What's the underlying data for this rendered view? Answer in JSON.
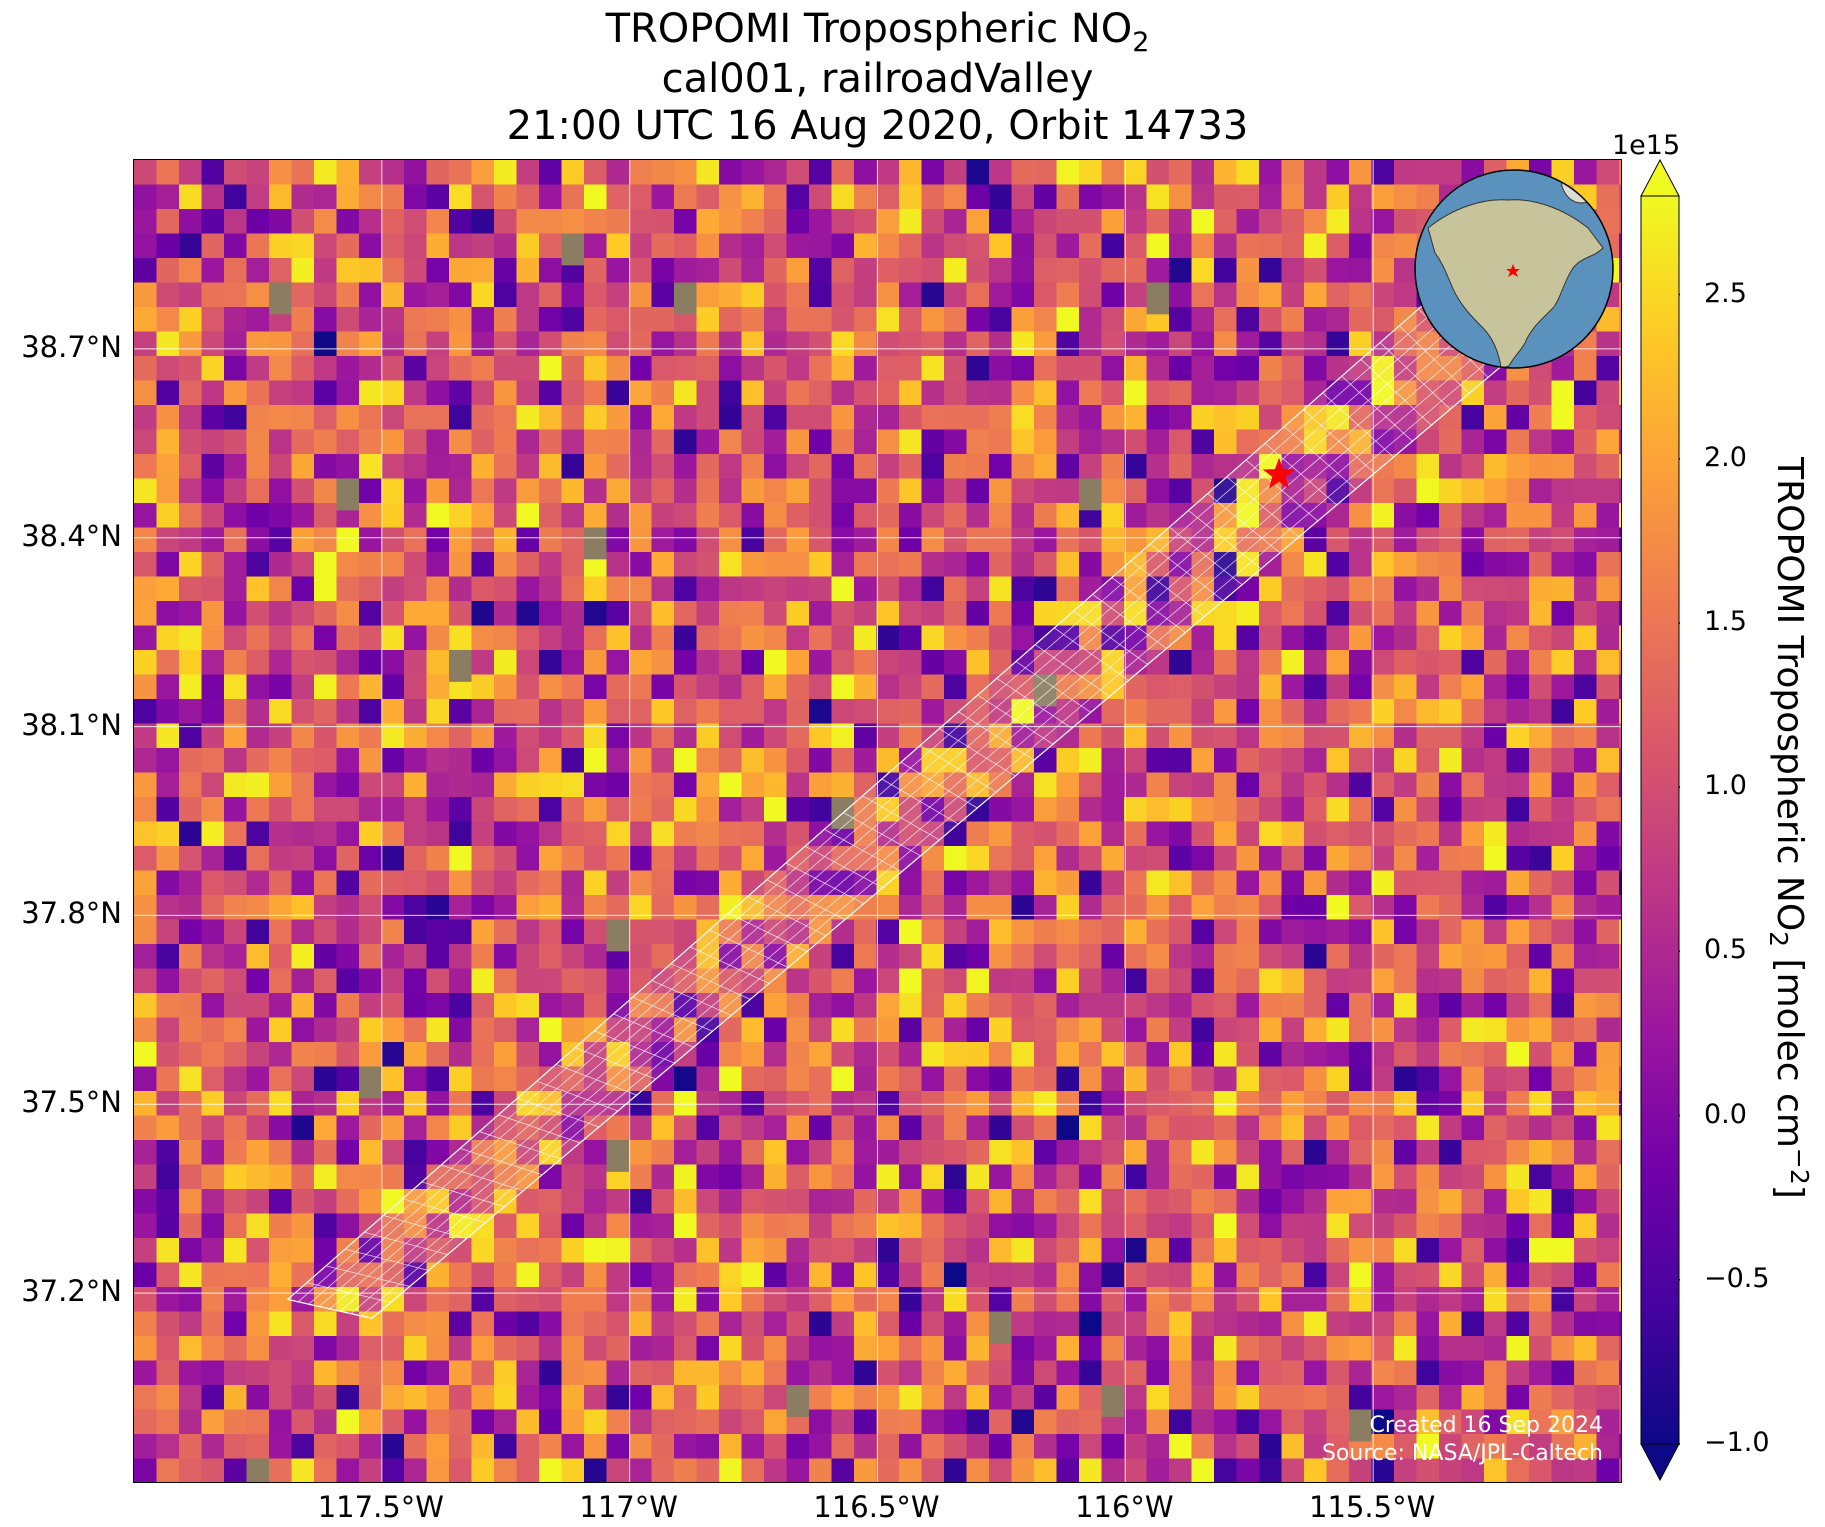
{
  "title": {
    "line1_prefix": "TROPOMI Tropospheric NO",
    "line1_sub": "2",
    "line2": "cal001, railroadValley",
    "line3": "21:00 UTC 16 Aug 2020, Orbit 14733"
  },
  "map": {
    "lon_range": [
      -118.0,
      -115.0
    ],
    "lat_range": [
      36.9,
      39.0
    ],
    "lat_ticks": [
      {
        "value": 38.7,
        "label": "38.7°N"
      },
      {
        "value": 38.4,
        "label": "38.4°N"
      },
      {
        "value": 38.1,
        "label": "38.1°N"
      },
      {
        "value": 37.8,
        "label": "37.8°N"
      },
      {
        "value": 37.5,
        "label": "37.5°N"
      },
      {
        "value": 37.2,
        "label": "37.2°N"
      }
    ],
    "lon_ticks": [
      {
        "value": -117.5,
        "label": "117.5°W"
      },
      {
        "value": -117.0,
        "label": "117°W"
      },
      {
        "value": -116.5,
        "label": "116.5°W"
      },
      {
        "value": -116.0,
        "label": "116°W"
      },
      {
        "value": -115.5,
        "label": "115.5°W"
      }
    ],
    "site_marker": {
      "lon": -115.69,
      "lat": 38.5,
      "color": "#ff0000",
      "symbol": "star"
    },
    "swath_corners": [
      {
        "lon": -117.69,
        "lat": 37.19
      },
      {
        "lon": -115.37,
        "lat": 38.79
      },
      {
        "lon": -115.23,
        "lat": 38.68
      },
      {
        "lon": -117.52,
        "lat": 37.16
      }
    ],
    "grid_lines": true,
    "grid_color": "#ffffff"
  },
  "credits": {
    "line1": "Created 16 Sep 2024",
    "line2": "Source: NASA/JPL-Caltech"
  },
  "colorbar": {
    "exponent": "1e15",
    "range": [
      -1.0,
      2.8
    ],
    "extend": "both",
    "colormap": "plasma",
    "colormap_stops": [
      "#0d0887",
      "#46039f",
      "#7201a8",
      "#9c179e",
      "#bd3786",
      "#d8576b",
      "#ed7953",
      "#fb9f3a",
      "#fdca26",
      "#f0f921"
    ],
    "ticks": [
      {
        "value": 2.5,
        "label": "2.5"
      },
      {
        "value": 2.0,
        "label": "2.0"
      },
      {
        "value": 1.5,
        "label": "1.5"
      },
      {
        "value": 1.0,
        "label": "1.0"
      },
      {
        "value": 0.5,
        "label": "0.5"
      },
      {
        "value": 0.0,
        "label": "0.0"
      },
      {
        "value": -0.5,
        "label": "−0.5"
      },
      {
        "value": -1.0,
        "label": "−1.0"
      }
    ],
    "label_prefix": "TROPOMI Tropospheric NO",
    "label_sub": "2",
    "label_units": " [molec cm",
    "label_sup": "−2",
    "label_close": "]"
  },
  "globe_inset": {
    "ocean_color": "#5b92bd",
    "land_color": "#c7c39a",
    "marker_color": "#ff0000"
  }
}
